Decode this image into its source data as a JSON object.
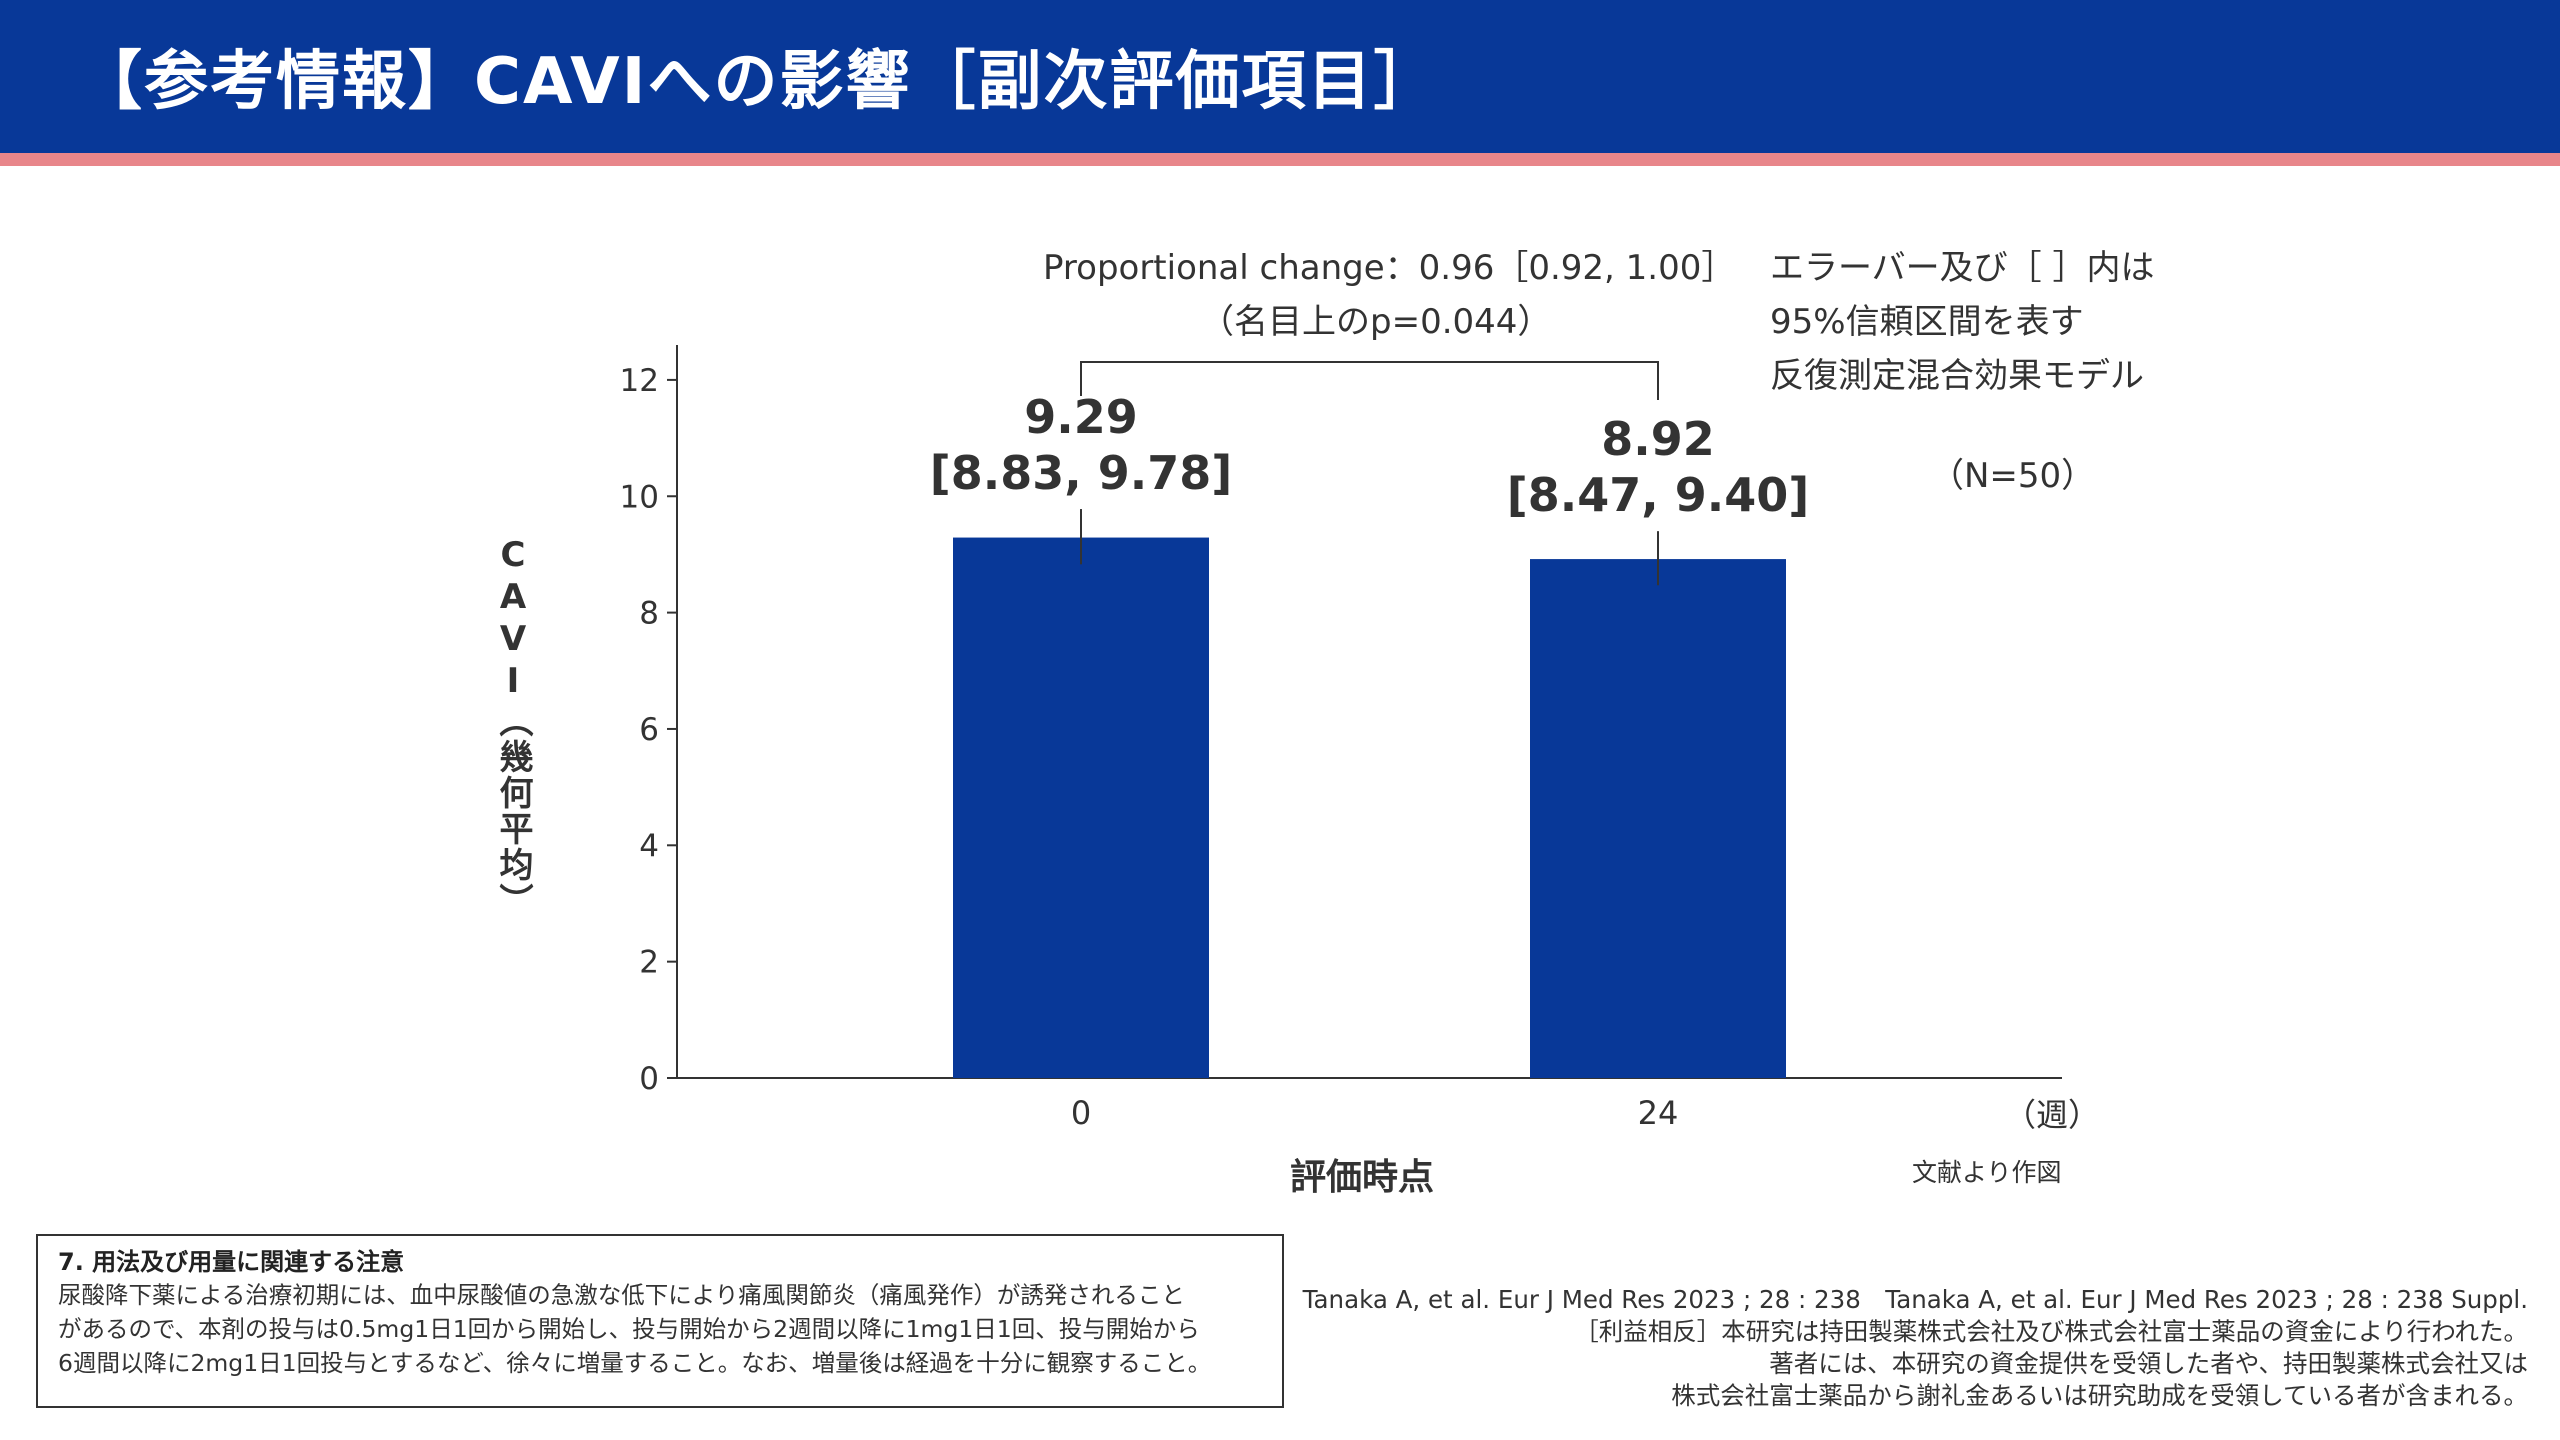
{
  "header": {
    "title": "【参考情報】CAVIへの影響［副次評価項目］"
  },
  "colors": {
    "header_bg": "#083898",
    "header_stripe": "#e8868a",
    "bar": "#083898"
  },
  "stats": {
    "proportional_change": "Proportional change：0.96［0.92, 1.00］",
    "p_value": "（名目上のp=0.044）"
  },
  "notes": {
    "line1": "エラーバー及び［ ］内は",
    "line2": "95%信頼区間を表す",
    "line3": "反復測定混合効果モデル",
    "n": "（N=50）"
  },
  "chart_data": {
    "type": "bar",
    "categories": [
      "0",
      "24"
    ],
    "values": [
      9.29,
      8.92
    ],
    "ci_lower": [
      8.83,
      8.47
    ],
    "ci_upper": [
      9.78,
      9.4
    ],
    "value_labels": [
      "9.29",
      "8.92"
    ],
    "ci_labels": [
      "[8.83, 9.78]",
      "[8.47, 9.40]"
    ],
    "y_ticks": [
      "0",
      "2",
      "4",
      "6",
      "8",
      "10",
      "12"
    ],
    "ylim": [
      0,
      12.6
    ],
    "ylabel": "CAVI（幾何平均）",
    "xlabel": "評価時点",
    "x_unit": "（週）",
    "grid": false,
    "source": "文献より作図"
  },
  "caution": {
    "title": "7. 用法及び用量に関連する注意",
    "lines": [
      "尿酸降下薬による治療初期には、血中尿酸値の急激な低下により痛風関節炎（痛風発作）が誘発されること",
      "があるので、本剤の投与は0.5mg1日1回から開始し、投与開始から2週間以降に1mg1日1回、投与開始から",
      "6週間以降に2mg1日1回投与とするなど、徐々に増量すること。なお、増量後は経過を十分に観察すること。"
    ]
  },
  "references": {
    "lines": [
      "Tanaka A, et al. Eur J Med Res 2023 ; 28 : 238　Tanaka A, et al. Eur J Med Res 2023 ; 28 : 238 Suppl.",
      "［利益相反］本研究は持田製薬株式会社及び株式会社富士薬品の資金により行われた。",
      "著者には、本研究の資金提供を受領した者や、持田製薬株式会社又は",
      "株式会社富士薬品から謝礼金あるいは研究助成を受領している者が含まれる。"
    ]
  }
}
